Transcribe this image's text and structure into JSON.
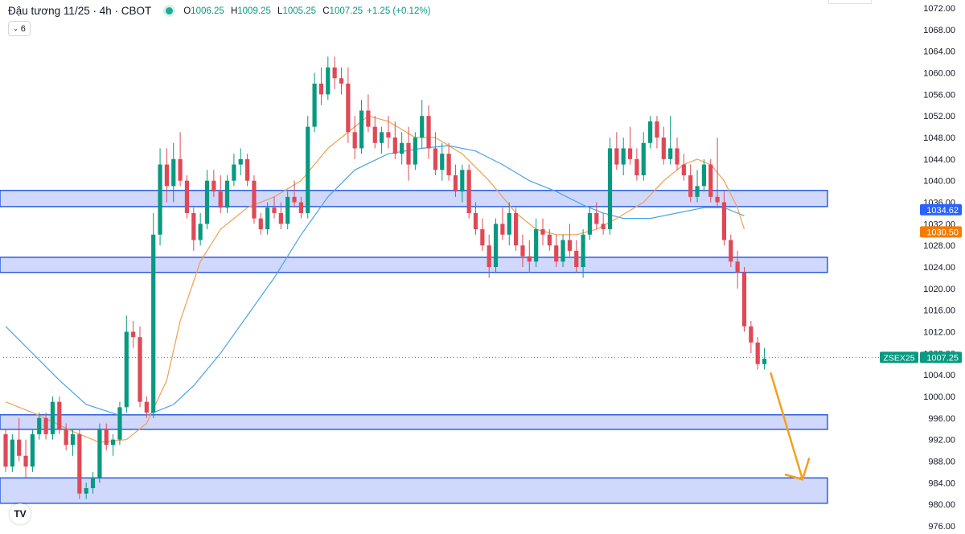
{
  "header": {
    "symbol_title": "Đậu tương 11/25 · 4h · CBOT",
    "open_label": "O",
    "open_value": "1006.25",
    "high_label": "H",
    "high_value": "1009.25",
    "low_label": "L",
    "low_value": "1005.25",
    "close_label": "C",
    "close_value": "1007.25",
    "change": "+1.25 (+0.12%)",
    "indicator_count": "6",
    "status_color": "#22ab94"
  },
  "chart_data": {
    "type": "candlestick",
    "ylim": [
      974.5,
      1073.5
    ],
    "y_ticks": [
      "1072.00",
      "1068.00",
      "1064.00",
      "1060.00",
      "1056.00",
      "1052.00",
      "1048.00",
      "1044.00",
      "1040.00",
      "1036.00",
      "1032.00",
      "1028.00",
      "1024.00",
      "1020.00",
      "1016.00",
      "1012.00",
      "1008.00",
      "1004.00",
      "1000.00",
      "996.00",
      "992.00",
      "988.00",
      "984.00",
      "980.00",
      "976.00"
    ],
    "grid": false,
    "colors": {
      "up": "#089981",
      "down": "#e04856",
      "ma_fast": "#f0a050",
      "ma_slow": "#4aa3ea",
      "zone_fill": "#cdd6fb",
      "zone_border": "#2f5fe0",
      "arrow": "#f4a01c"
    },
    "price_labels": [
      {
        "text": "1034.62",
        "value": 1034.62,
        "color": "#2962ff"
      },
      {
        "text": "1030.50",
        "value": 1030.5,
        "color": "#f57c00"
      },
      {
        "symbol": "ZSEX25",
        "text": "1007.25",
        "value": 1007.25,
        "color": "#089981"
      }
    ],
    "last_price": 1007.25,
    "zones": [
      {
        "top": 1038.2,
        "bottom": 1035.2
      },
      {
        "top": 1025.8,
        "bottom": 1023.0
      },
      {
        "top": 996.6,
        "bottom": 993.9
      },
      {
        "top": 984.9,
        "bottom": 980.2
      }
    ],
    "arrow": {
      "from_price": 1004.3,
      "to_price": 984.6
    },
    "candles": [
      [
        993,
        994,
        986,
        987
      ],
      [
        987,
        993,
        986,
        992
      ],
      [
        992,
        996,
        988,
        989
      ],
      [
        989,
        992,
        985,
        987
      ],
      [
        987,
        994,
        986,
        993
      ],
      [
        993,
        997,
        992,
        996
      ],
      [
        996,
        997,
        992,
        993
      ],
      [
        993,
        1000,
        992,
        999
      ],
      [
        999,
        1000,
        993,
        994
      ],
      [
        994,
        995,
        990,
        991
      ],
      [
        991,
        994,
        989,
        993
      ],
      [
        993,
        994,
        981,
        982
      ],
      [
        982,
        984,
        981,
        983
      ],
      [
        983,
        986,
        982,
        985
      ],
      [
        985,
        995,
        984,
        994
      ],
      [
        994,
        995,
        990,
        991
      ],
      [
        991,
        993,
        989,
        992
      ],
      [
        992,
        999,
        991,
        998
      ],
      [
        998,
        1015,
        997,
        1012
      ],
      [
        1012,
        1014,
        1009,
        1011
      ],
      [
        1011,
        1013,
        998,
        999
      ],
      [
        999,
        1000,
        996,
        997
      ],
      [
        997,
        1034,
        996,
        1030
      ],
      [
        1030,
        1046,
        1028,
        1043
      ],
      [
        1043,
        1046,
        1036,
        1039
      ],
      [
        1039,
        1047,
        1036,
        1044
      ],
      [
        1044,
        1049,
        1039,
        1040
      ],
      [
        1040,
        1041,
        1033,
        1034
      ],
      [
        1034,
        1035,
        1027,
        1029
      ],
      [
        1029,
        1034,
        1028,
        1032
      ],
      [
        1032,
        1042,
        1031,
        1040
      ],
      [
        1040,
        1042,
        1037,
        1038
      ],
      [
        1038,
        1041,
        1034,
        1035
      ],
      [
        1035,
        1041,
        1034,
        1040
      ],
      [
        1040,
        1045,
        1039,
        1043
      ],
      [
        1043,
        1046,
        1041,
        1044
      ],
      [
        1044,
        1045,
        1039,
        1040
      ],
      [
        1040,
        1041,
        1032,
        1033
      ],
      [
        1033,
        1034,
        1030,
        1031
      ],
      [
        1031,
        1036,
        1030,
        1035
      ],
      [
        1035,
        1037,
        1033,
        1034
      ],
      [
        1034,
        1036,
        1031,
        1032
      ],
      [
        1032,
        1038,
        1031,
        1037
      ],
      [
        1037,
        1040,
        1035,
        1036
      ],
      [
        1036,
        1037,
        1033,
        1034
      ],
      [
        1034,
        1052,
        1033,
        1050
      ],
      [
        1050,
        1060,
        1049,
        1058
      ],
      [
        1058,
        1061,
        1054,
        1056
      ],
      [
        1056,
        1063,
        1055,
        1061
      ],
      [
        1061,
        1063,
        1057,
        1059
      ],
      [
        1059,
        1061,
        1056,
        1058
      ],
      [
        1058,
        1061,
        1047,
        1049
      ],
      [
        1049,
        1052,
        1044,
        1046
      ],
      [
        1046,
        1055,
        1045,
        1053
      ],
      [
        1053,
        1056,
        1049,
        1050
      ],
      [
        1050,
        1052,
        1046,
        1047
      ],
      [
        1047,
        1050,
        1045,
        1049
      ],
      [
        1049,
        1052,
        1046,
        1048
      ],
      [
        1048,
        1051,
        1044,
        1045
      ],
      [
        1045,
        1049,
        1043,
        1047
      ],
      [
        1047,
        1050,
        1040,
        1043
      ],
      [
        1043,
        1049,
        1042,
        1048
      ],
      [
        1048,
        1055,
        1046,
        1052
      ],
      [
        1052,
        1054,
        1044,
        1046
      ],
      [
        1046,
        1049,
        1041,
        1042
      ],
      [
        1042,
        1047,
        1040,
        1045
      ],
      [
        1045,
        1047,
        1040,
        1041
      ],
      [
        1041,
        1043,
        1037,
        1038
      ],
      [
        1038,
        1043,
        1036,
        1042
      ],
      [
        1042,
        1043,
        1033,
        1034
      ],
      [
        1034,
        1036,
        1030,
        1031
      ],
      [
        1031,
        1033,
        1027,
        1028
      ],
      [
        1028,
        1030,
        1022,
        1024
      ],
      [
        1024,
        1033,
        1023,
        1032
      ],
      [
        1032,
        1035,
        1029,
        1030
      ],
      [
        1030,
        1036,
        1028,
        1034
      ],
      [
        1034,
        1035,
        1027,
        1028
      ],
      [
        1028,
        1030,
        1024,
        1026
      ],
      [
        1026,
        1029,
        1023,
        1025
      ],
      [
        1025,
        1033,
        1024,
        1031
      ],
      [
        1031,
        1033,
        1028,
        1030
      ],
      [
        1030,
        1031,
        1027,
        1028
      ],
      [
        1028,
        1030,
        1024,
        1025
      ],
      [
        1025,
        1030,
        1024,
        1029
      ],
      [
        1029,
        1032,
        1026,
        1027
      ],
      [
        1027,
        1029,
        1023,
        1024
      ],
      [
        1024,
        1031,
        1022,
        1030
      ],
      [
        1030,
        1035,
        1029,
        1034
      ],
      [
        1034,
        1036,
        1031,
        1032
      ],
      [
        1032,
        1034,
        1030,
        1031
      ],
      [
        1031,
        1048,
        1030,
        1046
      ],
      [
        1046,
        1049,
        1042,
        1043
      ],
      [
        1043,
        1048,
        1041,
        1046
      ],
      [
        1046,
        1050,
        1043,
        1044
      ],
      [
        1044,
        1046,
        1040,
        1041
      ],
      [
        1041,
        1049,
        1040,
        1047
      ],
      [
        1047,
        1052,
        1046,
        1051
      ],
      [
        1051,
        1052,
        1046,
        1048
      ],
      [
        1048,
        1050,
        1043,
        1044
      ],
      [
        1044,
        1052,
        1043,
        1046
      ],
      [
        1046,
        1048,
        1042,
        1043
      ],
      [
        1043,
        1045,
        1040,
        1041
      ],
      [
        1041,
        1043,
        1036,
        1037
      ],
      [
        1037,
        1042,
        1036,
        1039
      ],
      [
        1039,
        1044,
        1038,
        1043
      ],
      [
        1043,
        1044,
        1036,
        1037
      ],
      [
        1037,
        1048,
        1035,
        1036
      ],
      [
        1036,
        1038,
        1028,
        1029
      ],
      [
        1029,
        1030,
        1024,
        1025
      ],
      [
        1025,
        1027,
        1020,
        1023
      ],
      [
        1023,
        1024,
        1012,
        1013
      ],
      [
        1013,
        1014,
        1008,
        1010
      ],
      [
        1010,
        1011,
        1005,
        1006
      ],
      [
        1006,
        1009,
        1005,
        1007
      ]
    ],
    "ma_fast": [
      [
        0,
        999
      ],
      [
        5,
        996.5
      ],
      [
        10,
        993.5
      ],
      [
        14,
        991.5
      ],
      [
        18,
        992
      ],
      [
        21,
        995
      ],
      [
        24,
        1003
      ],
      [
        26,
        1014
      ],
      [
        29,
        1025
      ],
      [
        32,
        1031
      ],
      [
        36,
        1035
      ],
      [
        40,
        1037
      ],
      [
        44,
        1040
      ],
      [
        48,
        1046
      ],
      [
        52,
        1050
      ],
      [
        54,
        1052
      ],
      [
        57,
        1051
      ],
      [
        61,
        1048
      ],
      [
        64,
        1048
      ],
      [
        68,
        1045
      ],
      [
        72,
        1040
      ],
      [
        76,
        1034
      ],
      [
        79,
        1031
      ],
      [
        82,
        1030
      ],
      [
        85,
        1030
      ],
      [
        88,
        1031
      ],
      [
        91,
        1033
      ],
      [
        95,
        1036
      ],
      [
        98,
        1040
      ],
      [
        101,
        1043
      ],
      [
        103,
        1044
      ],
      [
        105,
        1043
      ],
      [
        107,
        1040
      ],
      [
        109,
        1035
      ],
      [
        110,
        1031
      ]
    ],
    "ma_slow": [
      [
        0,
        1013
      ],
      [
        4,
        1008
      ],
      [
        8,
        1003
      ],
      [
        12,
        998.5
      ],
      [
        17,
        996.5
      ],
      [
        21,
        996.5
      ],
      [
        25,
        998.5
      ],
      [
        28,
        1002
      ],
      [
        32,
        1008
      ],
      [
        36,
        1015
      ],
      [
        40,
        1022
      ],
      [
        44,
        1030
      ],
      [
        48,
        1037
      ],
      [
        52,
        1042
      ],
      [
        57,
        1045
      ],
      [
        62,
        1046
      ],
      [
        66,
        1046.5
      ],
      [
        70,
        1045.5
      ],
      [
        74,
        1043
      ],
      [
        78,
        1040
      ],
      [
        82,
        1038
      ],
      [
        86,
        1035.5
      ],
      [
        89,
        1034
      ],
      [
        92,
        1033
      ],
      [
        96,
        1033
      ],
      [
        100,
        1034
      ],
      [
        104,
        1035
      ],
      [
        107,
        1035
      ],
      [
        110,
        1033.5
      ]
    ]
  }
}
